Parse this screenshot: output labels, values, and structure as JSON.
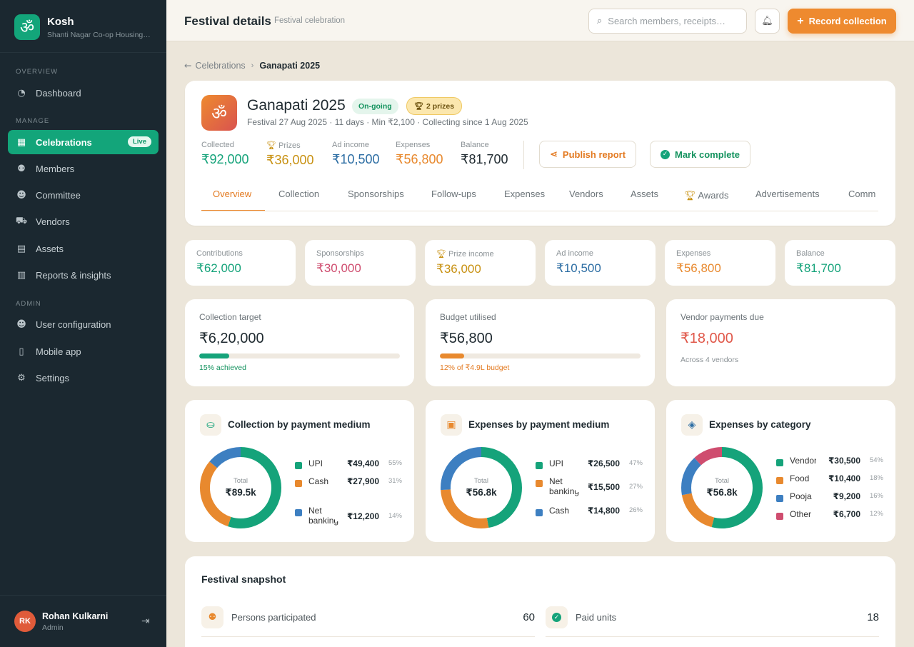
{
  "app": {
    "name": "Kosh",
    "org": "Shanti Nagar Co-op Housing Society",
    "logo_glyph": "ॐ"
  },
  "sidebar": {
    "sections": [
      {
        "label": "Overview"
      },
      {
        "label": "Manage"
      },
      {
        "label": "Admin"
      }
    ],
    "items": [
      {
        "label": "Dashboard",
        "icon": "gauge-icon"
      },
      {
        "label": "Celebrations",
        "icon": "calendar-icon",
        "badge": "Live"
      },
      {
        "label": "Members",
        "icon": "members-icon"
      },
      {
        "label": "Committee",
        "icon": "committee-icon"
      },
      {
        "label": "Vendors",
        "icon": "truck-icon"
      },
      {
        "label": "Assets",
        "icon": "box-icon"
      },
      {
        "label": "Reports & insights",
        "icon": "chart-icon"
      },
      {
        "label": "User configuration",
        "icon": "user-cog-icon"
      },
      {
        "label": "Mobile app",
        "icon": "mobile-icon"
      },
      {
        "label": "Settings",
        "icon": "gear-icon"
      }
    ],
    "user": {
      "initials": "RK",
      "name": "Rohan Kulkarni",
      "role": "Admin"
    }
  },
  "topbar": {
    "title": "Festival details",
    "subtitle": "Festival celebration",
    "search_placeholder": "Search members, receipts…",
    "record_label": "Record collection"
  },
  "breadcrumb": {
    "parent": "Celebrations",
    "current": "Ganapati 2025"
  },
  "festival": {
    "name": "Ganapati 2025",
    "status": "On-going",
    "prizes": "2 prizes",
    "meta": "Festival 27 Aug 2025 · 11 days · Min ₹2,100 · Collecting since 1 Aug 2025",
    "stats": [
      {
        "label": "Collected",
        "value": "₹92,000",
        "color": "#15a37a"
      },
      {
        "label": "Prizes",
        "value": "₹36,000",
        "color": "#c89112"
      },
      {
        "label": "Ad income",
        "value": "₹10,500",
        "color": "#2c6da3"
      },
      {
        "label": "Expenses",
        "value": "₹56,800",
        "color": "#e8892e"
      },
      {
        "label": "Balance",
        "value": "₹81,700",
        "color": "#1f2a30"
      }
    ],
    "publish_label": "Publish report",
    "complete_label": "Mark complete"
  },
  "tabs": [
    "Overview",
    "Collection",
    "Sponsorships",
    "Follow-ups",
    "Expenses",
    "Vendors",
    "Assets",
    "Awards",
    "Advertisements",
    "Comm"
  ],
  "summary": [
    {
      "label": "Contributions",
      "value": "₹62,000",
      "color": "#15a37a"
    },
    {
      "label": "Sponsorships",
      "value": "₹30,000",
      "color": "#cf4d6f"
    },
    {
      "label": "Prize income",
      "value": "₹36,000",
      "color": "#c89112"
    },
    {
      "label": "Ad income",
      "value": "₹10,500",
      "color": "#2c6da3"
    },
    {
      "label": "Expenses",
      "value": "₹56,800",
      "color": "#e8892e"
    },
    {
      "label": "Balance",
      "value": "₹81,700",
      "color": "#15a37a"
    }
  ],
  "progress": [
    {
      "label": "Collection target",
      "value": "₹6,20,000",
      "fraction": 0.15,
      "note": "15% achieved",
      "color": "#15a37a"
    },
    {
      "label": "Budget utilised",
      "value": "₹56,800",
      "fraction": 0.12,
      "note": "12% of ₹4.9L budget",
      "color": "#e8892e"
    },
    {
      "label": "Vendor payments due",
      "value": "₹18,000",
      "note": "Across 4 vendors",
      "color": "#e0584a"
    }
  ],
  "donuts": [
    {
      "title": "Collection by payment medium",
      "icon": "hand-coin-icon",
      "total_label": "Total",
      "total": "₹89.5k",
      "items": [
        {
          "name": "UPI",
          "value": "₹49,400",
          "pct": "55%",
          "share": 55,
          "color": "#15a37a"
        },
        {
          "name": "Cash",
          "value": "₹27,900",
          "pct": "31%",
          "share": 31,
          "color": "#e8892e"
        },
        {
          "name": "Net banking",
          "value": "₹12,200",
          "pct": "14%",
          "share": 14,
          "color": "#3d7fc1"
        }
      ]
    },
    {
      "title": "Expenses by payment medium",
      "icon": "banknote-icon",
      "total_label": "Total",
      "total": "₹56.8k",
      "items": [
        {
          "name": "UPI",
          "value": "₹26,500",
          "pct": "47%",
          "share": 47,
          "color": "#15a37a"
        },
        {
          "name": "Net banking",
          "value": "₹15,500",
          "pct": "27%",
          "share": 27,
          "color": "#e8892e"
        },
        {
          "name": "Cash",
          "value": "₹14,800",
          "pct": "26%",
          "share": 26,
          "color": "#3d7fc1"
        }
      ]
    },
    {
      "title": "Expenses by category",
      "icon": "layers-icon",
      "total_label": "Total",
      "total": "₹56.8k",
      "items": [
        {
          "name": "Vendors",
          "value": "₹30,500",
          "pct": "54%",
          "share": 54,
          "color": "#15a37a"
        },
        {
          "name": "Food",
          "value": "₹10,400",
          "pct": "18%",
          "share": 18,
          "color": "#e8892e"
        },
        {
          "name": "Pooja",
          "value": "₹9,200",
          "pct": "16%",
          "share": 16,
          "color": "#3d7fc1"
        },
        {
          "name": "Other",
          "value": "₹6,700",
          "pct": "12%",
          "share": 12,
          "color": "#cf4d6f"
        }
      ]
    }
  ],
  "snapshot": {
    "title": "Festival snapshot",
    "rows": [
      {
        "label": "Persons participated",
        "value": "60",
        "icon": "people-icon"
      },
      {
        "label": "Paid units",
        "value": "18",
        "icon": "check-circle-icon"
      }
    ]
  }
}
